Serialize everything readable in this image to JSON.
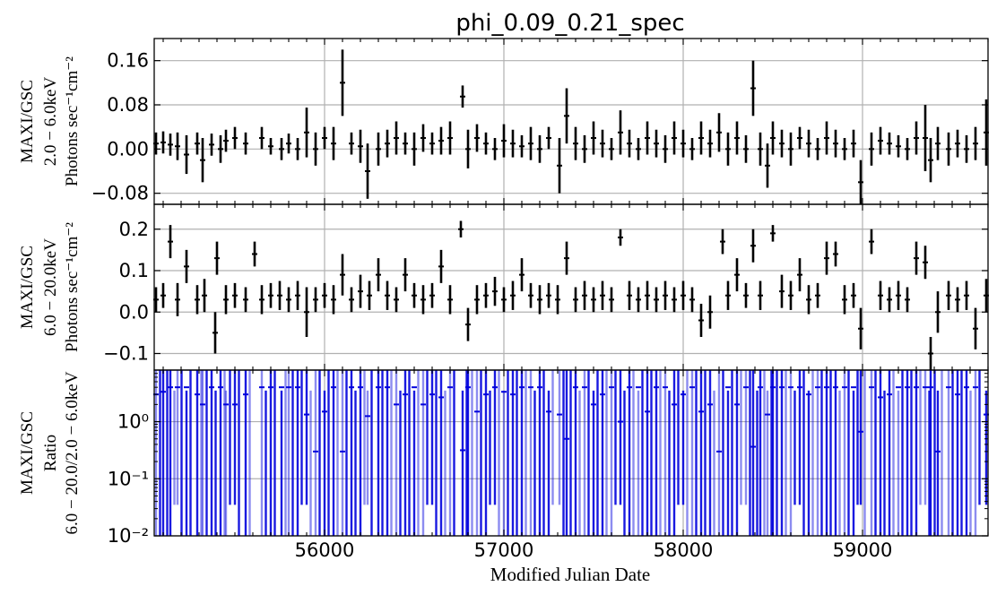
{
  "chart_data": {
    "title": "phi_0.09_0.21_spec",
    "type": "scatter",
    "xlabel": "Modified Julian Date",
    "xlim": [
      55050,
      59700
    ],
    "xticks": [
      56000,
      57000,
      58000,
      59000
    ],
    "xtick_labels": [
      "56000",
      "57000",
      "58000",
      "59000"
    ],
    "panels": [
      {
        "id": "soft",
        "ylabel_lines": [
          "MAXI/GSC",
          "2.0 − 6.0keV",
          "Photons sec⁻¹cm⁻²"
        ],
        "ylim": [
          -0.1,
          0.2
        ],
        "scale": "linear",
        "yticks": [
          -0.08,
          0.0,
          0.08,
          0.16
        ],
        "ytick_labels": [
          "−0.08",
          "0.00",
          "0.08",
          "0.16"
        ],
        "series_color": "#000000",
        "points": [
          [
            55060,
            0.01,
            0.02
          ],
          [
            55100,
            0.012,
            0.02
          ],
          [
            55140,
            0.008,
            0.02
          ],
          [
            55180,
            0.005,
            0.025
          ],
          [
            55230,
            -0.01,
            0.035
          ],
          [
            55290,
            0.01,
            0.02
          ],
          [
            55320,
            -0.02,
            0.04
          ],
          [
            55370,
            0.008,
            0.02
          ],
          [
            55420,
            0.0,
            0.025
          ],
          [
            55450,
            0.015,
            0.02
          ],
          [
            55500,
            0.02,
            0.02
          ],
          [
            55560,
            0.01,
            0.02
          ],
          [
            55650,
            0.02,
            0.02
          ],
          [
            55700,
            0.005,
            0.015
          ],
          [
            55760,
            0.0,
            0.02
          ],
          [
            55800,
            0.01,
            0.018
          ],
          [
            55850,
            0.0,
            0.02
          ],
          [
            55900,
            0.03,
            0.045
          ],
          [
            55950,
            0.0,
            0.03
          ],
          [
            56000,
            0.02,
            0.02
          ],
          [
            56050,
            0.01,
            0.03
          ],
          [
            56100,
            0.12,
            0.06
          ],
          [
            56150,
            0.01,
            0.02
          ],
          [
            56200,
            0.005,
            0.03
          ],
          [
            56240,
            -0.04,
            0.05
          ],
          [
            56300,
            0.0,
            0.03
          ],
          [
            56350,
            0.01,
            0.025
          ],
          [
            56400,
            0.02,
            0.03
          ],
          [
            56450,
            0.01,
            0.02
          ],
          [
            56500,
            0.0,
            0.03
          ],
          [
            56550,
            0.02,
            0.025
          ],
          [
            56600,
            0.01,
            0.02
          ],
          [
            56650,
            0.015,
            0.025
          ],
          [
            56700,
            0.02,
            0.03
          ],
          [
            56770,
            0.095,
            0.02
          ],
          [
            56800,
            0.0,
            0.035
          ],
          [
            56850,
            0.02,
            0.025
          ],
          [
            56900,
            0.01,
            0.02
          ],
          [
            56950,
            0.0,
            0.02
          ],
          [
            57000,
            0.015,
            0.03
          ],
          [
            57050,
            0.01,
            0.025
          ],
          [
            57100,
            0.005,
            0.02
          ],
          [
            57150,
            0.01,
            0.03
          ],
          [
            57200,
            0.0,
            0.025
          ],
          [
            57250,
            0.02,
            0.02
          ],
          [
            57310,
            -0.03,
            0.05
          ],
          [
            57350,
            0.06,
            0.05
          ],
          [
            57400,
            0.01,
            0.03
          ],
          [
            57450,
            0.0,
            0.025
          ],
          [
            57500,
            0.02,
            0.03
          ],
          [
            57550,
            0.01,
            0.025
          ],
          [
            57600,
            0.0,
            0.02
          ],
          [
            57650,
            0.03,
            0.04
          ],
          [
            57700,
            0.01,
            0.025
          ],
          [
            57750,
            0.0,
            0.02
          ],
          [
            57800,
            0.02,
            0.03
          ],
          [
            57850,
            0.01,
            0.025
          ],
          [
            57900,
            0.0,
            0.025
          ],
          [
            57950,
            0.02,
            0.03
          ],
          [
            58000,
            0.01,
            0.025
          ],
          [
            58050,
            0.0,
            0.02
          ],
          [
            58100,
            0.02,
            0.03
          ],
          [
            58150,
            0.01,
            0.025
          ],
          [
            58200,
            0.03,
            0.035
          ],
          [
            58250,
            0.0,
            0.03
          ],
          [
            58300,
            0.02,
            0.03
          ],
          [
            58350,
            0.0,
            0.025
          ],
          [
            58390,
            0.11,
            0.05
          ],
          [
            58430,
            0.0,
            0.03
          ],
          [
            58470,
            -0.03,
            0.04
          ],
          [
            58500,
            0.02,
            0.03
          ],
          [
            58550,
            0.01,
            0.025
          ],
          [
            58600,
            0.0,
            0.03
          ],
          [
            58650,
            0.02,
            0.02
          ],
          [
            58700,
            0.01,
            0.025
          ],
          [
            58750,
            0.0,
            0.02
          ],
          [
            58800,
            0.02,
            0.03
          ],
          [
            58850,
            0.01,
            0.025
          ],
          [
            58900,
            0.0,
            0.02
          ],
          [
            58950,
            0.01,
            0.025
          ],
          [
            58990,
            -0.06,
            0.04
          ],
          [
            59050,
            0.0,
            0.03
          ],
          [
            59100,
            0.015,
            0.025
          ],
          [
            59150,
            0.01,
            0.02
          ],
          [
            59200,
            0.005,
            0.02
          ],
          [
            59250,
            0.0,
            0.02
          ],
          [
            59300,
            0.02,
            0.03
          ],
          [
            59350,
            0.02,
            0.06
          ],
          [
            59380,
            -0.02,
            0.04
          ],
          [
            59420,
            0.01,
            0.03
          ],
          [
            59480,
            0.0,
            0.03
          ],
          [
            59530,
            0.01,
            0.025
          ],
          [
            59580,
            0.0,
            0.025
          ],
          [
            59630,
            0.01,
            0.03
          ],
          [
            59690,
            0.03,
            0.06
          ]
        ]
      },
      {
        "id": "hard",
        "ylabel_lines": [
          "MAXI/GSC",
          "6.0 − 20.0keV",
          "Photons sec⁻¹cm⁻²"
        ],
        "ylim": [
          -0.14,
          0.26
        ],
        "scale": "linear",
        "yticks": [
          -0.1,
          0.0,
          0.1,
          0.2
        ],
        "ytick_labels": [
          "−0.1",
          "0.0",
          "0.1",
          "0.2"
        ],
        "series_color": "#000000",
        "points": [
          [
            55060,
            0.03,
            0.03
          ],
          [
            55100,
            0.04,
            0.03
          ],
          [
            55140,
            0.17,
            0.04
          ],
          [
            55180,
            0.03,
            0.04
          ],
          [
            55230,
            0.11,
            0.04
          ],
          [
            55290,
            0.03,
            0.035
          ],
          [
            55330,
            0.04,
            0.04
          ],
          [
            55390,
            -0.05,
            0.05
          ],
          [
            55400,
            0.13,
            0.04
          ],
          [
            55450,
            0.03,
            0.035
          ],
          [
            55500,
            0.04,
            0.03
          ],
          [
            55560,
            0.03,
            0.03
          ],
          [
            55610,
            0.14,
            0.03
          ],
          [
            55650,
            0.03,
            0.035
          ],
          [
            55700,
            0.04,
            0.03
          ],
          [
            55750,
            0.04,
            0.035
          ],
          [
            55800,
            0.03,
            0.03
          ],
          [
            55850,
            0.04,
            0.035
          ],
          [
            55900,
            0.0,
            0.06
          ],
          [
            55950,
            0.03,
            0.03
          ],
          [
            56000,
            0.04,
            0.03
          ],
          [
            56050,
            0.03,
            0.035
          ],
          [
            56100,
            0.09,
            0.05
          ],
          [
            56150,
            0.03,
            0.03
          ],
          [
            56200,
            0.05,
            0.04
          ],
          [
            56250,
            0.04,
            0.035
          ],
          [
            56300,
            0.09,
            0.04
          ],
          [
            56350,
            0.04,
            0.035
          ],
          [
            56400,
            0.03,
            0.03
          ],
          [
            56450,
            0.09,
            0.04
          ],
          [
            56500,
            0.04,
            0.03
          ],
          [
            56550,
            0.03,
            0.035
          ],
          [
            56600,
            0.04,
            0.03
          ],
          [
            56650,
            0.11,
            0.04
          ],
          [
            56700,
            0.03,
            0.035
          ],
          [
            56760,
            0.2,
            0.02
          ],
          [
            56800,
            -0.03,
            0.04
          ],
          [
            56850,
            0.03,
            0.035
          ],
          [
            56900,
            0.04,
            0.03
          ],
          [
            56950,
            0.05,
            0.035
          ],
          [
            57000,
            0.03,
            0.03
          ],
          [
            57050,
            0.04,
            0.035
          ],
          [
            57100,
            0.09,
            0.04
          ],
          [
            57150,
            0.04,
            0.03
          ],
          [
            57200,
            0.03,
            0.035
          ],
          [
            57250,
            0.04,
            0.03
          ],
          [
            57300,
            0.03,
            0.035
          ],
          [
            57350,
            0.13,
            0.04
          ],
          [
            57400,
            0.03,
            0.03
          ],
          [
            57450,
            0.04,
            0.035
          ],
          [
            57500,
            0.03,
            0.03
          ],
          [
            57550,
            0.04,
            0.035
          ],
          [
            57600,
            0.03,
            0.03
          ],
          [
            57650,
            0.18,
            0.02
          ],
          [
            57700,
            0.04,
            0.035
          ],
          [
            57750,
            0.03,
            0.03
          ],
          [
            57800,
            0.04,
            0.035
          ],
          [
            57850,
            0.03,
            0.03
          ],
          [
            57900,
            0.04,
            0.035
          ],
          [
            57950,
            0.03,
            0.03
          ],
          [
            58000,
            0.04,
            0.035
          ],
          [
            58050,
            0.03,
            0.03
          ],
          [
            58100,
            -0.02,
            0.04
          ],
          [
            58150,
            0.0,
            0.04
          ],
          [
            58220,
            0.17,
            0.03
          ],
          [
            58250,
            0.04,
            0.035
          ],
          [
            58300,
            0.09,
            0.04
          ],
          [
            58350,
            0.04,
            0.03
          ],
          [
            58390,
            0.16,
            0.04
          ],
          [
            58430,
            0.04,
            0.035
          ],
          [
            58500,
            0.19,
            0.02
          ],
          [
            58550,
            0.05,
            0.04
          ],
          [
            58600,
            0.04,
            0.035
          ],
          [
            58650,
            0.09,
            0.04
          ],
          [
            58700,
            0.03,
            0.035
          ],
          [
            58750,
            0.04,
            0.03
          ],
          [
            58800,
            0.13,
            0.04
          ],
          [
            58850,
            0.14,
            0.03
          ],
          [
            58900,
            0.03,
            0.035
          ],
          [
            58950,
            0.04,
            0.03
          ],
          [
            58990,
            -0.04,
            0.05
          ],
          [
            59050,
            0.17,
            0.03
          ],
          [
            59100,
            0.04,
            0.035
          ],
          [
            59150,
            0.03,
            0.03
          ],
          [
            59200,
            0.04,
            0.035
          ],
          [
            59250,
            0.03,
            0.03
          ],
          [
            59300,
            0.13,
            0.04
          ],
          [
            59350,
            0.12,
            0.04
          ],
          [
            59380,
            -0.1,
            0.04
          ],
          [
            59420,
            0.0,
            0.05
          ],
          [
            59480,
            0.04,
            0.035
          ],
          [
            59530,
            0.03,
            0.03
          ],
          [
            59580,
            0.04,
            0.035
          ],
          [
            59630,
            -0.04,
            0.05
          ],
          [
            59690,
            0.04,
            0.04
          ]
        ]
      },
      {
        "id": "ratio",
        "ylabel_lines": [
          "MAXI/GSC",
          "Ratio",
          "6.0 − 20.0/2.0 − 6.0keV"
        ],
        "ylim": [
          0.01,
          8
        ],
        "scale": "log",
        "yticks": [
          0.01,
          0.1,
          1
        ],
        "ytick_labels": [
          "10⁻²",
          "10⁻¹",
          "10⁰"
        ],
        "series_color": "#0000dd",
        "note": "dense blue error bars spanning nearly the full log range at most time bins"
      }
    ]
  }
}
